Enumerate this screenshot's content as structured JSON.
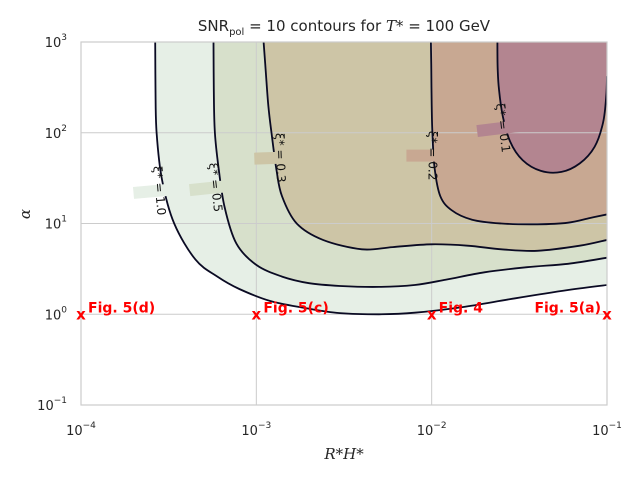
{
  "chart_data": {
    "type": "contour",
    "title": "SNR_pol = 10 contours for T* = 100 GeV",
    "title_parts": {
      "pre": "SNR",
      "sub": "pol",
      "mid": " = 10 contours for ",
      "var": "T",
      "star": "*",
      "post": " = 100 GeV"
    },
    "xlabel": "R*H*",
    "ylabel": "α",
    "xscale": "log",
    "yscale": "log",
    "xlim": [
      0.0001,
      0.1
    ],
    "ylim": [
      0.1,
      1000
    ],
    "x_ticks": [
      {
        "value": 0.0001,
        "base": "10",
        "exp": "−4"
      },
      {
        "value": 0.001,
        "base": "10",
        "exp": "−3"
      },
      {
        "value": 0.01,
        "base": "10",
        "exp": "−2"
      },
      {
        "value": 0.1,
        "base": "10",
        "exp": "−1"
      }
    ],
    "y_ticks": [
      {
        "value": 0.1,
        "base": "10",
        "exp": "−1"
      },
      {
        "value": 1,
        "base": "10",
        "exp": "0"
      },
      {
        "value": 10,
        "base": "10",
        "exp": "1"
      },
      {
        "value": 100,
        "base": "10",
        "exp": "2"
      },
      {
        "value": 1000,
        "base": "10",
        "exp": "3"
      }
    ],
    "grid": true,
    "contours": [
      {
        "label": "ξ* = 1.0",
        "fill": "#e6efe6",
        "label_at": [
          0.00028,
          23
        ],
        "label_rotation": 85,
        "points": [
          [
            0.000265,
            1000
          ],
          [
            0.000266,
            300
          ],
          [
            0.00027,
            100
          ],
          [
            0.00029,
            30
          ],
          [
            0.00034,
            10
          ],
          [
            0.00045,
            4
          ],
          [
            0.0006,
            2.6
          ],
          [
            0.0008,
            1.9
          ],
          [
            0.0012,
            1.4
          ],
          [
            0.002,
            1.15
          ],
          [
            0.003,
            1.03
          ],
          [
            0.005,
            1.0
          ],
          [
            0.008,
            1.04
          ],
          [
            0.015,
            1.2
          ],
          [
            0.03,
            1.5
          ],
          [
            0.06,
            1.85
          ],
          [
            0.1,
            2.1
          ]
        ]
      },
      {
        "label": "ξ* = 0.5",
        "fill": "#d7e0cb",
        "label_at": [
          0.000585,
          25
        ],
        "label_rotation": 84,
        "points": [
          [
            0.00057,
            1000
          ],
          [
            0.000572,
            300
          ],
          [
            0.00058,
            100
          ],
          [
            0.00061,
            40
          ],
          [
            0.00066,
            15
          ],
          [
            0.00077,
            6
          ],
          [
            0.001,
            3.5
          ],
          [
            0.0014,
            2.6
          ],
          [
            0.002,
            2.2
          ],
          [
            0.003,
            2.05
          ],
          [
            0.005,
            2.0
          ],
          [
            0.008,
            2.1
          ],
          [
            0.012,
            2.4
          ],
          [
            0.02,
            2.9
          ],
          [
            0.035,
            3.3
          ],
          [
            0.06,
            3.6
          ],
          [
            0.1,
            4.2
          ]
        ]
      },
      {
        "label": "ξ* = 0.3",
        "fill": "#cdc5a6",
        "label_at": [
          0.00137,
          53
        ],
        "label_rotation": 88,
        "points": [
          [
            0.0011,
            1000
          ],
          [
            0.00113,
            500
          ],
          [
            0.00117,
            200
          ],
          [
            0.00122,
            100
          ],
          [
            0.0013,
            40
          ],
          [
            0.0014,
            20
          ],
          [
            0.0017,
            10
          ],
          [
            0.0024,
            6.6
          ],
          [
            0.004,
            5.2
          ],
          [
            0.006,
            5.5
          ],
          [
            0.01,
            5.9
          ],
          [
            0.016,
            5.7
          ],
          [
            0.025,
            5.2
          ],
          [
            0.04,
            5.0
          ],
          [
            0.07,
            5.7
          ],
          [
            0.1,
            6.6
          ]
        ]
      },
      {
        "label": "ξ* = 0.2",
        "fill": "#c8a892",
        "label_at": [
          0.0101,
          56
        ],
        "label_rotation": 90,
        "points": [
          [
            0.0099,
            1000
          ],
          [
            0.00995,
            500
          ],
          [
            0.01,
            200
          ],
          [
            0.0101,
            100
          ],
          [
            0.0104,
            40
          ],
          [
            0.0112,
            20
          ],
          [
            0.013,
            14
          ],
          [
            0.017,
            11
          ],
          [
            0.025,
            10
          ],
          [
            0.04,
            9.8
          ],
          [
            0.06,
            10.2
          ],
          [
            0.08,
            11.5
          ],
          [
            0.1,
            12.6
          ]
        ]
      },
      {
        "label": "ξ* = 0.1",
        "fill": "#b38590",
        "label_at": [
          0.0255,
          113
        ],
        "label_rotation": 83,
        "points": [
          [
            0.0237,
            1000
          ],
          [
            0.0238,
            500
          ],
          [
            0.0242,
            300
          ],
          [
            0.0255,
            150
          ],
          [
            0.028,
            80
          ],
          [
            0.033,
            50
          ],
          [
            0.042,
            38
          ],
          [
            0.055,
            37
          ],
          [
            0.07,
            46
          ],
          [
            0.085,
            70
          ],
          [
            0.095,
            130
          ],
          [
            0.099,
            250
          ],
          [
            0.1,
            420
          ]
        ]
      }
    ],
    "markers": [
      {
        "label": "Fig. 5(d)",
        "x": 0.0001,
        "y": 1,
        "label_side": "right"
      },
      {
        "label": "Fig. 5(c)",
        "x": 0.001,
        "y": 1,
        "label_side": "right"
      },
      {
        "label": "Fig. 4",
        "x": 0.01,
        "y": 1,
        "label_side": "right"
      },
      {
        "label": "Fig. 5(a)",
        "x": 0.1,
        "y": 1,
        "label_side": "left"
      }
    ],
    "marker_symbol": "x",
    "marker_color": "#ff0000",
    "line_color": "#0a0a23",
    "grid_color": "#cccccc"
  }
}
